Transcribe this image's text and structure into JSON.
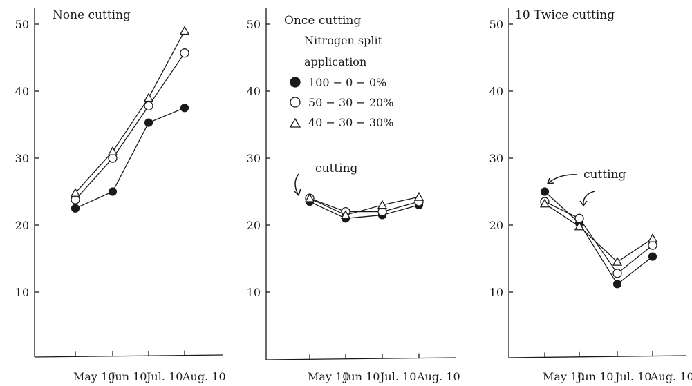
{
  "chart_data": [
    {
      "type": "line",
      "title": "None cutting",
      "xlabel": "",
      "ylabel": "",
      "x": [
        "May 10",
        "Jun 10",
        "Jul. 10",
        "Aug. 10"
      ],
      "ylim": [
        0,
        52
      ],
      "yticks": [
        10,
        20,
        30,
        40,
        50
      ],
      "series": [
        {
          "name": "100 − 0 − 0%",
          "marker": "filled-circle",
          "values": [
            22.5,
            25,
            35.3,
            37.5
          ]
        },
        {
          "name": "50 − 30 − 20%",
          "marker": "open-circle",
          "values": [
            23.8,
            30,
            37.8,
            45.7
          ]
        },
        {
          "name": "40 − 30 − 30%",
          "marker": "open-triangle",
          "values": [
            24.8,
            31,
            39,
            49
          ]
        }
      ]
    },
    {
      "type": "line",
      "title": "Once cutting",
      "xlabel": "",
      "ylabel": "",
      "x": [
        "May 10",
        "Jun 10",
        "Jul. 10",
        "Aug. 10"
      ],
      "ylim": [
        0,
        52
      ],
      "yticks": [
        10,
        20,
        30,
        40,
        50
      ],
      "annotations": [
        {
          "text": "cutting",
          "at": "May 10"
        }
      ],
      "series": [
        {
          "name": "100 − 0 − 0%",
          "marker": "filled-circle",
          "values": [
            23.5,
            21,
            21.5,
            23
          ]
        },
        {
          "name": "50 − 30 − 20%",
          "marker": "open-circle",
          "values": [
            24,
            22,
            22,
            23.5
          ]
        },
        {
          "name": "40 − 30 − 30%",
          "marker": "open-triangle",
          "values": [
            24,
            21.5,
            23,
            24.2
          ]
        }
      ]
    },
    {
      "type": "line",
      "title": "10 Twice cutting",
      "xlabel": "",
      "ylabel": "",
      "x": [
        "May 10",
        "Jun 10",
        "Jul. 10",
        "Aug. 10"
      ],
      "ylim": [
        0,
        52
      ],
      "yticks": [
        10,
        20,
        30,
        40,
        50
      ],
      "annotations": [
        {
          "text": "cutting",
          "at": "May 10"
        },
        {
          "text": "cutting",
          "at": "Jun 10"
        }
      ],
      "series": [
        {
          "name": "100 − 0 − 0%",
          "marker": "filled-circle",
          "values": [
            25,
            20.3,
            11.2,
            15.3
          ]
        },
        {
          "name": "50 − 30 − 20%",
          "marker": "open-circle",
          "values": [
            23.5,
            21,
            12.8,
            17
          ]
        },
        {
          "name": "40 − 30 − 30%",
          "marker": "open-triangle",
          "values": [
            23.2,
            19.8,
            14.5,
            18
          ]
        }
      ]
    }
  ],
  "legend": {
    "title_line1": "Nitrogen split",
    "title_line2": "application",
    "items": [
      {
        "label": "100 − 0 − 0%",
        "marker": "filled-circle"
      },
      {
        "label": "50 − 30 − 20%",
        "marker": "open-circle"
      },
      {
        "label": "40 − 30 − 30%",
        "marker": "open-triangle"
      }
    ]
  }
}
